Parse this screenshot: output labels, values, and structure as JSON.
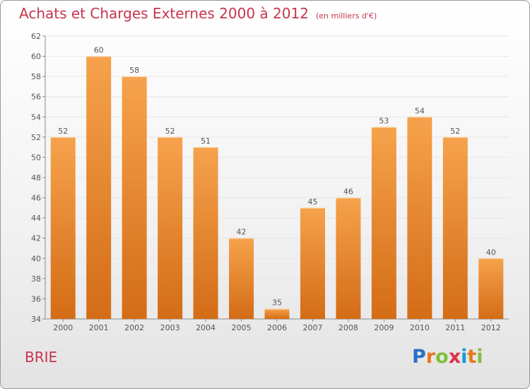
{
  "title": "Achats et Charges Externes 2000 à 2012",
  "unit": "(en milliers d'€)",
  "commune": "BRIE",
  "logo": {
    "text": "Proxiti",
    "letter_colors": [
      "#2a6fc9",
      "#e8761c",
      "#7fbf3b",
      "#d9334b",
      "#1a9ad6",
      "#e8761c",
      "#7fbf3b"
    ]
  },
  "colors": {
    "bar_top": "#f6a24c",
    "bar_bottom": "#d46c16",
    "axis": "#8a8a8a",
    "grid": "#e6e6e6",
    "label": "#555555"
  },
  "chart_data": {
    "type": "bar",
    "categories": [
      "2000",
      "2001",
      "2002",
      "2003",
      "2004",
      "2005",
      "2006",
      "2007",
      "2008",
      "2009",
      "2010",
      "2011",
      "2012"
    ],
    "values": [
      52,
      60,
      58,
      52,
      51,
      42,
      35,
      45,
      46,
      53,
      54,
      52,
      40
    ],
    "ylim": [
      34,
      62
    ],
    "yticks": [
      34,
      36,
      38,
      40,
      42,
      44,
      46,
      48,
      50,
      52,
      54,
      56,
      58,
      60,
      62
    ],
    "xlabel": "",
    "ylabel": "",
    "grid": true,
    "data_labels": true
  }
}
